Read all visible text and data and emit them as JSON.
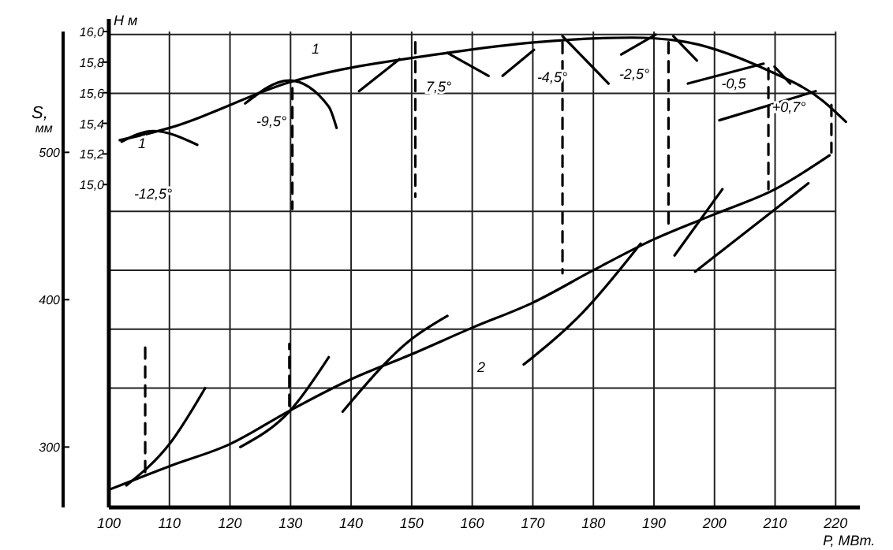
{
  "chart_data": {
    "type": "line",
    "xlabel": "Р, МВт.",
    "ylabel": "S,$_{мм}$",
    "y2label": "Н м",
    "xlim": [
      100,
      224
    ],
    "xticks": [
      100,
      110,
      120,
      130,
      140,
      150,
      160,
      170,
      180,
      190,
      200,
      210,
      220
    ],
    "ylim": [
      259,
      582
    ],
    "yticks": [
      300,
      {
        "value": 340,
        "label": null
      },
      {
        "value": 380,
        "label": null
      },
      400,
      {
        "value": 420,
        "label": null
      },
      {
        "value": 460,
        "label": null
      },
      500,
      {
        "value": 540,
        "label": null
      },
      {
        "value": 580,
        "label": null
      }
    ],
    "y2lim": [
      12.89,
      16.0
    ],
    "y2ticks": [
      {
        "value": 15.0,
        "label": "15,0"
      },
      {
        "value": 15.2,
        "label": "15,2"
      },
      {
        "value": 15.4,
        "label": "15,4"
      },
      {
        "value": 15.6,
        "label": "15,6"
      },
      {
        "value": 15.8,
        "label": "15,8"
      },
      {
        "value": 16.0,
        "label": "16,0"
      }
    ],
    "grid": true,
    "marker": "none",
    "line_style": "solid",
    "series": [
      {
        "color": "#000000",
        "axis": "y2",
        "x": [
          101.8,
          110,
          130,
          155.9,
          170.5,
          186.4,
          194,
          208.6,
          217.8,
          221.7
        ],
        "values": [
          15.29,
          15.37,
          15.67,
          15.86,
          15.93,
          15.96,
          15.94,
          15.75,
          15.55,
          15.41
        ]
      },
      {
        "color": "#000000",
        "axis": "y",
        "x": [
          100,
          110,
          120,
          130,
          140,
          150,
          160,
          170,
          180,
          190,
          200,
          210,
          219
        ],
        "values": [
          271,
          287,
          302,
          325,
          346,
          363,
          381,
          398,
          420,
          441,
          458,
          475,
          498
        ]
      },
      {
        "color": "#000000",
        "axis": "y2",
        "x": [
          102.1,
          107.3,
          114.6
        ],
        "values": [
          15.28,
          15.35,
          15.26
        ]
      },
      {
        "color": "#000000",
        "axis": "y2",
        "x": [
          122.5,
          129.8,
          136.3,
          137.6
        ],
        "values": [
          15.53,
          15.68,
          15.51,
          15.37
        ]
      },
      {
        "color": "#000000",
        "axis": "y2",
        "x": [
          141.3,
          148
        ],
        "values": [
          15.61,
          15.82
        ]
      },
      {
        "color": "#000000",
        "axis": "y2",
        "x": [
          155.9,
          162.7
        ],
        "values": [
          15.86,
          15.71
        ]
      },
      {
        "color": "#000000",
        "axis": "y2",
        "x": [
          165,
          170.2
        ],
        "values": [
          15.71,
          15.88
        ]
      },
      {
        "color": "#000000",
        "axis": "y2",
        "x": [
          174.9,
          182.5
        ],
        "values": [
          15.97,
          15.66
        ]
      },
      {
        "color": "#000000",
        "axis": "y2",
        "x": [
          184.6,
          190.3
        ],
        "values": [
          15.85,
          15.98
        ]
      },
      {
        "color": "#000000",
        "axis": "y2",
        "x": [
          193.2,
          197.1
        ],
        "values": [
          15.97,
          15.81
        ]
      },
      {
        "color": "#000000",
        "axis": "y2",
        "x": [
          195.6,
          208.1
        ],
        "values": [
          15.66,
          15.79
        ]
      },
      {
        "color": "#000000",
        "axis": "y2",
        "x": [
          209.9,
          212.5
        ],
        "values": [
          15.77,
          15.66
        ]
      },
      {
        "color": "#000000",
        "axis": "y2",
        "x": [
          200.8,
          216.7
        ],
        "values": [
          15.42,
          15.61
        ]
      },
      {
        "color": "#000000",
        "axis": "y",
        "x": [
          102.9,
          110,
          115.9
        ],
        "values": [
          274,
          302,
          340
        ]
      },
      {
        "color": "#000000",
        "axis": "y",
        "x": [
          121.7,
          130,
          136.3
        ],
        "values": [
          300,
          325,
          361
        ]
      },
      {
        "color": "#000000",
        "axis": "y",
        "x": [
          138.6,
          149.9,
          155.9
        ],
        "values": [
          324,
          373,
          389
        ]
      },
      {
        "color": "#000000",
        "axis": "y",
        "x": [
          168.5,
          178.4,
          187.8
        ],
        "values": [
          356,
          392,
          438
        ]
      },
      {
        "color": "#000000",
        "axis": "y",
        "x": [
          196.8,
          215.5
        ],
        "values": [
          419,
          479
        ]
      },
      {
        "color": "#000000",
        "axis": "y",
        "x": [
          193.4,
          201.3
        ],
        "values": [
          430,
          475
        ]
      },
      {
        "color": "#000000",
        "axis": "y",
        "line_style": "dashed",
        "x": [
          106,
          106
        ],
        "values": [
          283,
          368
        ]
      },
      {
        "color": "#000000",
        "axis": "y",
        "line_style": "dashed",
        "x": [
          129.8,
          129.8
        ],
        "values": [
          328,
          370
        ]
      },
      {
        "color": "#000000",
        "axis": "y2",
        "line_style": "dashed",
        "x": [
          130.3,
          130.3
        ],
        "values": [
          15.63,
          14.84
        ]
      },
      {
        "color": "#000000",
        "axis": "y2",
        "line_style": "dashed",
        "x": [
          150.6,
          150.6
        ],
        "values": [
          15.93,
          14.92
        ]
      },
      {
        "color": "#000000",
        "axis": "y2",
        "line_style": "dashed",
        "x": [
          174.9,
          174.9
        ],
        "values": [
          15.93,
          14.42
        ]
      },
      {
        "color": "#000000",
        "axis": "y2",
        "line_style": "dashed",
        "x": [
          192.4,
          192.4
        ],
        "values": [
          15.93,
          14.73
        ]
      },
      {
        "color": "#000000",
        "axis": "y2",
        "line_style": "dashed",
        "x": [
          208.9,
          208.9
        ],
        "values": [
          15.76,
          14.97
        ]
      },
      {
        "color": "#000000",
        "axis": "y2",
        "line_style": "dashed",
        "x": [
          219.3,
          219.3
        ],
        "values": [
          15.52,
          15.21
        ]
      }
    ],
    "annotations": [
      "1",
      "2",
      "1",
      "-12,5°",
      "-9,5°",
      "7,5°",
      "-4,5°",
      "-2,5°",
      "-0,5",
      "+0,7°"
    ]
  }
}
